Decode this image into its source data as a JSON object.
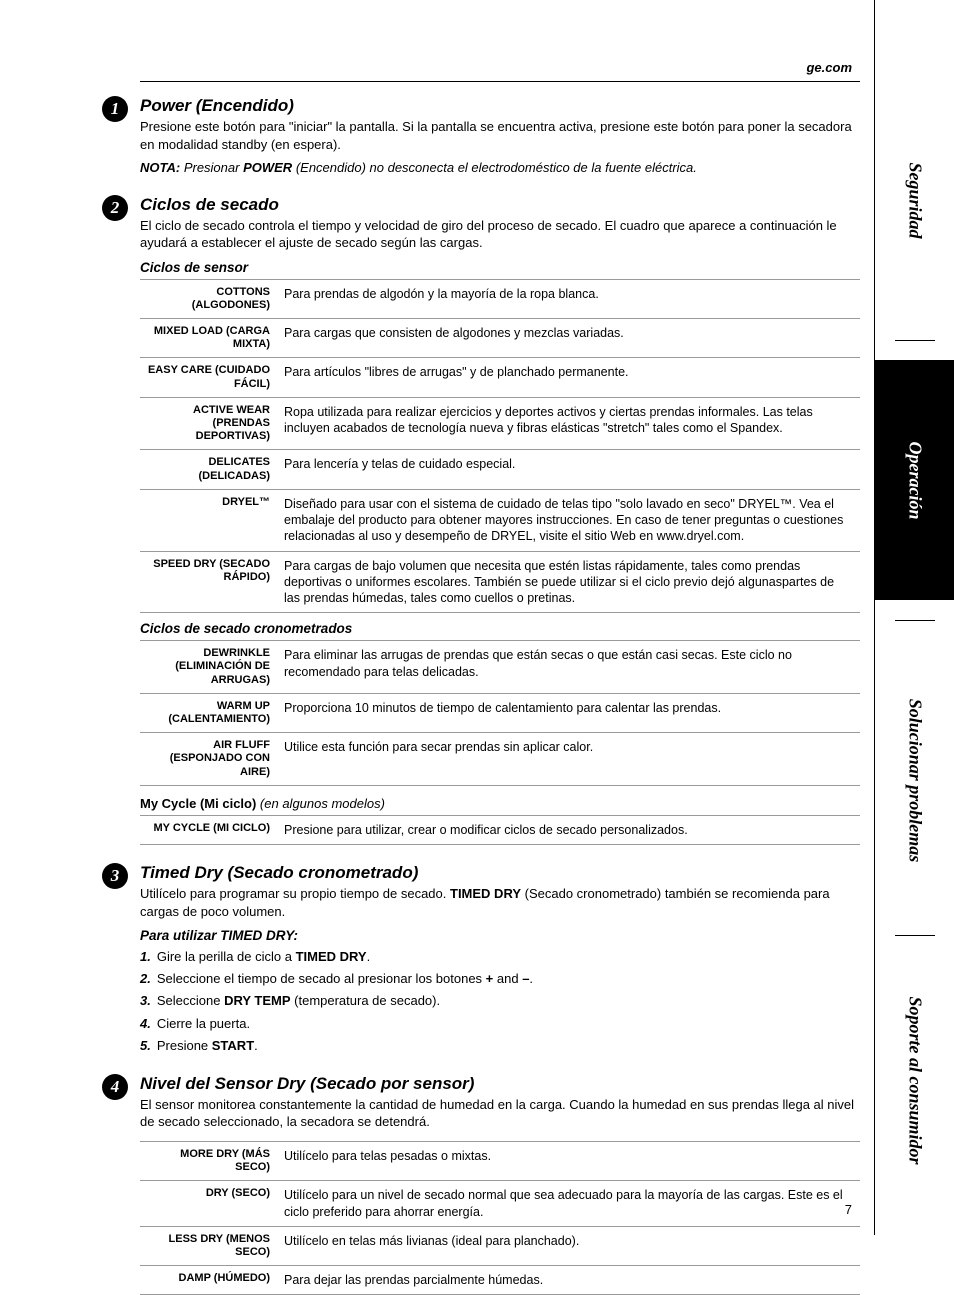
{
  "header": {
    "link": "ge.com"
  },
  "tabs": {
    "t1": "Seguridad",
    "t2": "Operación",
    "t3": "Solucionar problemas",
    "t4": "Soporte al consumidor"
  },
  "sections": [
    {
      "num": "1",
      "title": "Power (Encendido)",
      "body": "Presione este botón para \"iniciar\" la pantalla. Si la pantalla se encuentra activa, presione este botón para poner la secadora en modalidad standby (en espera).",
      "note_label": "NOTA:",
      "note_bold": "POWER",
      "note_pre": " Presionar ",
      "note_post": " (Encendido) no desconecta el electrodoméstico de la fuente eléctrica."
    },
    {
      "num": "2",
      "title": "Ciclos de secado",
      "body": "El ciclo de secado controla el tiempo y velocidad de giro del proceso de secado. El cuadro que aparece a continuación le ayudará a establecer el ajuste de secado según las cargas.",
      "sub1": "Ciclos de sensor",
      "table1": [
        {
          "label": "COTTONS (ALGODONES)",
          "desc": "Para prendas de algodón y la mayoría de la ropa blanca."
        },
        {
          "label": "MIXED LOAD (CARGA MIXTA)",
          "desc": "Para cargas que consisten de algodones y mezclas variadas."
        },
        {
          "label": "EASY CARE (CUIDADO FÁCIL)",
          "desc": "Para artículos \"libres de arrugas\" y de planchado permanente."
        },
        {
          "label": "ACTIVE WEAR (PRENDAS DEPORTIVAS)",
          "desc": "Ropa utilizada para realizar ejercicios y deportes activos y ciertas prendas informales. Las telas incluyen acabados de tecnología nueva y fibras elásticas \"stretch\" tales como el Spandex."
        },
        {
          "label": "DELICATES (DELICADAS)",
          "desc": "Para lencería y telas de cuidado especial."
        },
        {
          "label": "DRYEL™",
          "desc": "Diseñado para usar con el sistema de cuidado de telas tipo \"solo lavado en seco\" DRYEL™. Vea el embalaje del producto para obtener mayores instrucciones. En caso de tener preguntas o cuestiones relacionadas al uso y desempeño de DRYEL, visite el sitio Web en www.dryel.com."
        },
        {
          "label": "SPEED DRY (SECADO RÁPIDO)",
          "desc": "Para cargas de bajo volumen que necesita que estén listas rápidamente, tales como prendas deportivas o uniformes escolares. También se puede utilizar si el ciclo previo dejó algunaspartes de las prendas húmedas, tales como cuellos o pretinas."
        }
      ],
      "sub2": "Ciclos de secado cronometrados",
      "table2": [
        {
          "label": "DEWRINKLE (ELIMINACIÓN DE ARRUGAS)",
          "desc": "Para eliminar las arrugas de prendas que están secas o que están casi secas. Este ciclo no recomendado para telas delicadas."
        },
        {
          "label": "WARM UP (CALENTAMIENTO)",
          "desc": "Proporciona 10 minutos de tiempo de calentamiento para calentar las prendas."
        },
        {
          "label": "AIR FLUFF (ESPONJADO CON AIRE)",
          "desc": "Utilice esta función para secar prendas sin aplicar calor."
        }
      ],
      "mycycle_head_bold": "My Cycle (Mi ciclo)",
      "mycycle_head_em": " (en algunos modelos)",
      "table3": [
        {
          "label": "MY CYCLE (MI CICLO)",
          "desc": "Presione para utilizar, crear o modificar ciclos de secado personalizados."
        }
      ]
    },
    {
      "num": "3",
      "title": "Timed Dry (Secado cronometrado)",
      "body_pre": "Utilícelo para programar su propio tiempo de secado. ",
      "body_bold": "TIMED DRY",
      "body_post": " (Secado cronometrado) también se recomienda para cargas de poco volumen.",
      "sub": "Para utilizar TIMED DRY:",
      "steps": [
        {
          "n": "1.",
          "pre": "Gire la perilla de ciclo a ",
          "bold": "TIMED DRY",
          "post": "."
        },
        {
          "n": "2.",
          "pre": "Seleccione el tiempo de secado al presionar los botones  ",
          "bold": "+",
          "mid": " and ",
          "bold2": "–",
          "post": "."
        },
        {
          "n": "3.",
          "pre": "Seleccione ",
          "bold": "DRY TEMP",
          "post": " (temperatura de secado)."
        },
        {
          "n": "4.",
          "pre": "Cierre la puerta.",
          "bold": "",
          "post": ""
        },
        {
          "n": "5.",
          "pre": "Presione ",
          "bold": "START",
          "post": "."
        }
      ]
    },
    {
      "num": "4",
      "title": "Nivel del Sensor Dry (Secado por sensor)",
      "body": "El sensor monitorea constantemente la cantidad de humedad en la carga. Cuando la humedad en sus prendas llega al nivel de secado seleccionado, la secadora se detendrá.",
      "table": [
        {
          "label": "MORE DRY (MÁS SECO)",
          "desc": "Utilícelo para telas pesadas o mixtas."
        },
        {
          "label": "DRY (SECO)",
          "desc": "Utilícelo para un nivel de secado normal que sea adecuado para la mayoría de las cargas. Este es el ciclo preferido para ahorrar energía."
        },
        {
          "label": "LESS DRY (MENOS SECO)",
          "desc": "Utilícelo en telas más livianas (ideal para planchado)."
        },
        {
          "label": "DAMP (HÚMEDO)",
          "desc": "Para dejar las prendas parcialmente húmedas."
        }
      ]
    }
  ],
  "pagenum": "7"
}
